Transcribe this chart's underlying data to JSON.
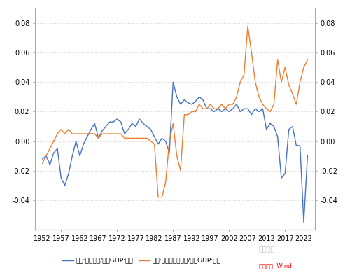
{
  "years": [
    1952,
    1953,
    1954,
    1955,
    1956,
    1957,
    1958,
    1959,
    1960,
    1961,
    1962,
    1963,
    1964,
    1965,
    1966,
    1967,
    1968,
    1969,
    1970,
    1971,
    1972,
    1973,
    1974,
    1975,
    1976,
    1977,
    1978,
    1979,
    1980,
    1981,
    1982,
    1983,
    1984,
    1985,
    1986,
    1987,
    1988,
    1989,
    1990,
    1991,
    1992,
    1993,
    1994,
    1995,
    1996,
    1997,
    1998,
    1999,
    2000,
    2001,
    2002,
    2003,
    2004,
    2005,
    2006,
    2007,
    2008,
    2009,
    2010,
    2011,
    2012,
    2013,
    2014,
    2015,
    2016,
    2017,
    2018,
    2019,
    2020,
    2021,
    2022,
    2023
  ],
  "japan": [
    -0.012,
    -0.01,
    -0.016,
    -0.008,
    -0.005,
    -0.025,
    -0.03,
    -0.022,
    -0.01,
    0.0,
    -0.01,
    -0.002,
    0.003,
    0.008,
    0.012,
    0.002,
    0.007,
    0.01,
    0.013,
    0.013,
    0.015,
    0.013,
    0.005,
    0.008,
    0.012,
    0.01,
    0.015,
    0.012,
    0.01,
    0.008,
    0.003,
    -0.002,
    0.002,
    0.0,
    -0.008,
    0.04,
    0.03,
    0.025,
    0.028,
    0.026,
    0.025,
    0.027,
    0.03,
    0.028,
    0.022,
    0.022,
    0.02,
    0.022,
    0.02,
    0.022,
    0.02,
    0.022,
    0.025,
    0.02,
    0.022,
    0.022,
    0.018,
    0.022,
    0.02,
    0.022,
    0.008,
    0.012,
    0.01,
    0.003,
    -0.025,
    -0.022,
    0.008,
    0.01,
    -0.003,
    -0.003,
    -0.055,
    -0.01
  ],
  "china": [
    -0.015,
    -0.01,
    -0.005,
    0.0,
    0.005,
    0.008,
    0.005,
    0.008,
    0.005,
    0.005,
    0.005,
    0.005,
    0.005,
    0.005,
    0.005,
    0.002,
    0.005,
    0.005,
    0.005,
    0.005,
    0.005,
    0.005,
    0.002,
    0.002,
    0.002,
    0.002,
    0.002,
    0.002,
    0.002,
    0.0,
    -0.002,
    -0.038,
    -0.038,
    -0.028,
    -0.0,
    0.012,
    -0.01,
    -0.02,
    0.018,
    0.018,
    0.02,
    0.02,
    0.025,
    0.022,
    0.022,
    0.025,
    0.022,
    0.022,
    0.025,
    0.022,
    0.025,
    0.025,
    0.03,
    0.04,
    0.045,
    0.078,
    0.06,
    0.04,
    0.03,
    0.025,
    0.022,
    0.02,
    0.025,
    0.055,
    0.04,
    0.05,
    0.038,
    0.032,
    0.025,
    0.04,
    0.05,
    0.055
  ],
  "japan_color": "#4472c4",
  "china_color": "#ed7d31",
  "japan_label": "日本:贸易差额/日本GDP:现价",
  "china_label": "中国:贸易差额人民币/中国GDP:现价",
  "ylim": [
    -0.06,
    0.09
  ],
  "yticks": [
    -0.04,
    -0.02,
    0.0,
    0.02,
    0.04,
    0.06,
    0.08
  ],
  "xticks": [
    1952,
    1957,
    1962,
    1967,
    1972,
    1977,
    1982,
    1987,
    1992,
    1997,
    2002,
    2007,
    2012,
    2017,
    2022
  ],
  "background_color": "#ffffff",
  "grid_color": "#cccccc",
  "source_text": "数据来源: Wind",
  "watermark_text": "半夏投资",
  "border_color": "#aaaaaa"
}
